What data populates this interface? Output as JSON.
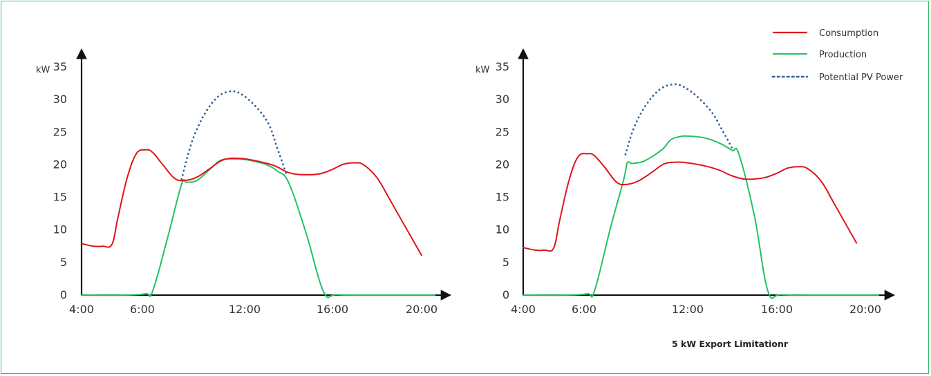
{
  "chart_data": [
    {
      "type": "line",
      "ylabel": "kW",
      "yticks": [
        "0",
        "5",
        "10",
        "15",
        "20",
        "25",
        "30",
        "35"
      ],
      "xticks": [
        "4:00",
        "6:00",
        "12:00",
        "16:00",
        "20:00"
      ],
      "ylim": [
        0,
        35
      ],
      "xlim": [
        4,
        21
      ],
      "series": [
        {
          "name": "Consumption",
          "color": "#e0131a",
          "style": "solid",
          "points": [
            [
              4.0,
              7.9
            ],
            [
              4.4,
              7.5
            ],
            [
              4.7,
              7.5
            ],
            [
              5.0,
              7.8
            ],
            [
              5.2,
              12.0
            ],
            [
              5.5,
              18.0
            ],
            [
              5.8,
              21.7
            ],
            [
              6.2,
              22.3
            ],
            [
              6.6,
              21.9
            ],
            [
              7.2,
              20.0
            ],
            [
              7.9,
              17.9
            ],
            [
              8.5,
              17.6
            ],
            [
              9.2,
              18.1
            ],
            [
              10.0,
              19.5
            ],
            [
              10.6,
              20.6
            ],
            [
              11.2,
              21.0
            ],
            [
              12.0,
              20.9
            ],
            [
              12.8,
              20.4
            ],
            [
              13.4,
              19.8
            ],
            [
              14.0,
              18.8
            ],
            [
              14.6,
              18.5
            ],
            [
              15.4,
              18.6
            ],
            [
              16.0,
              19.3
            ],
            [
              16.5,
              20.1
            ],
            [
              17.0,
              20.3
            ],
            [
              17.4,
              20.0
            ],
            [
              18.0,
              18.0
            ],
            [
              18.6,
              14.5
            ],
            [
              19.6,
              8.5
            ],
            [
              20.0,
              6.1
            ]
          ]
        },
        {
          "name": "Production",
          "color": "#1ec460",
          "style": "solid",
          "points": [
            [
              4.0,
              0
            ],
            [
              5.4,
              0
            ],
            [
              6.2,
              0.2
            ],
            [
              6.6,
              0.6
            ],
            [
              7.5,
              9.0
            ],
            [
              8.3,
              17.0
            ],
            [
              8.6,
              17.3
            ],
            [
              9.2,
              17.6
            ],
            [
              10.0,
              19.4
            ],
            [
              10.6,
              20.7
            ],
            [
              11.4,
              20.9
            ],
            [
              12.2,
              20.7
            ],
            [
              13.0,
              20.0
            ],
            [
              13.5,
              19.0
            ],
            [
              14.0,
              17.3
            ],
            [
              14.8,
              9.5
            ],
            [
              15.6,
              0.5
            ],
            [
              16.2,
              0.05
            ],
            [
              18.0,
              0
            ],
            [
              20.6,
              0
            ]
          ]
        },
        {
          "name": "Potential PV Power",
          "color": "#2f5e9e",
          "style": "dotted",
          "points": [
            [
              8.3,
              17.8
            ],
            [
              9.0,
              24.2
            ],
            [
              10.0,
              29.2
            ],
            [
              11.0,
              31.2
            ],
            [
              12.0,
              30.5
            ],
            [
              13.0,
              26.8
            ],
            [
              13.5,
              22.4
            ],
            [
              13.9,
              18.6
            ]
          ]
        }
      ]
    },
    {
      "type": "line",
      "ylabel": "kW",
      "yticks": [
        "0",
        "5",
        "10",
        "15",
        "20",
        "25",
        "30",
        "35"
      ],
      "xticks": [
        "4:00",
        "6:00",
        "12:00",
        "16:00",
        "20:00"
      ],
      "ylim": [
        0,
        35
      ],
      "xlim": [
        4,
        21
      ],
      "series": [
        {
          "name": "Consumption",
          "color": "#e0131a",
          "style": "solid",
          "points": [
            [
              4.0,
              7.3
            ],
            [
              4.4,
              6.9
            ],
            [
              4.7,
              6.9
            ],
            [
              5.0,
              7.2
            ],
            [
              5.2,
              11.5
            ],
            [
              5.5,
              17.5
            ],
            [
              5.8,
              21.2
            ],
            [
              6.2,
              21.7
            ],
            [
              6.6,
              21.4
            ],
            [
              7.2,
              19.6
            ],
            [
              7.9,
              17.3
            ],
            [
              8.5,
              17.0
            ],
            [
              9.2,
              17.6
            ],
            [
              10.0,
              19.0
            ],
            [
              10.6,
              20.1
            ],
            [
              11.2,
              20.4
            ],
            [
              12.0,
              20.3
            ],
            [
              12.8,
              19.8
            ],
            [
              13.4,
              19.2
            ],
            [
              14.0,
              18.3
            ],
            [
              14.6,
              17.8
            ],
            [
              15.4,
              18.0
            ],
            [
              16.0,
              18.7
            ],
            [
              16.5,
              19.5
            ],
            [
              17.0,
              19.7
            ],
            [
              17.4,
              19.4
            ],
            [
              18.0,
              17.5
            ],
            [
              18.6,
              14.0
            ],
            [
              19.6,
              8.0
            ]
          ]
        },
        {
          "name": "Production",
          "color": "#1ec460",
          "style": "solid",
          "points": [
            [
              4.0,
              0
            ],
            [
              5.4,
              0
            ],
            [
              6.2,
              0.2
            ],
            [
              6.6,
              0.6
            ],
            [
              7.5,
              10.0
            ],
            [
              8.3,
              17.8
            ],
            [
              8.5,
              20.3
            ],
            [
              8.8,
              20.2
            ],
            [
              9.5,
              20.6
            ],
            [
              10.5,
              22.3
            ],
            [
              11.0,
              23.8
            ],
            [
              11.5,
              24.3
            ],
            [
              12.0,
              24.4
            ],
            [
              12.8,
              24.1
            ],
            [
              13.5,
              23.2
            ],
            [
              14.0,
              22.2
            ],
            [
              14.3,
              21.6
            ],
            [
              15.0,
              12.0
            ],
            [
              15.6,
              0.6
            ],
            [
              16.2,
              0.05
            ],
            [
              18.0,
              0
            ],
            [
              20.6,
              0
            ]
          ]
        },
        {
          "name": "Potential PV Power",
          "color": "#2f5e9e",
          "style": "dotted",
          "points": [
            [
              8.4,
              21.6
            ],
            [
              9.0,
              26.4
            ],
            [
              10.0,
              30.6
            ],
            [
              11.0,
              32.3
            ],
            [
              12.0,
              31.6
            ],
            [
              13.0,
              28.4
            ],
            [
              13.6,
              25.0
            ],
            [
              14.0,
              22.5
            ]
          ]
        }
      ]
    }
  ],
  "legend": {
    "items": [
      {
        "label": "Consumption",
        "color": "#e0131a",
        "style": "solid"
      },
      {
        "label": "Production",
        "color": "#1ec460",
        "style": "solid"
      },
      {
        "label": "Potential PV Power",
        "color": "#2f5e9e",
        "style": "dotted"
      }
    ]
  },
  "caption": "5 kW Export Limitationr"
}
